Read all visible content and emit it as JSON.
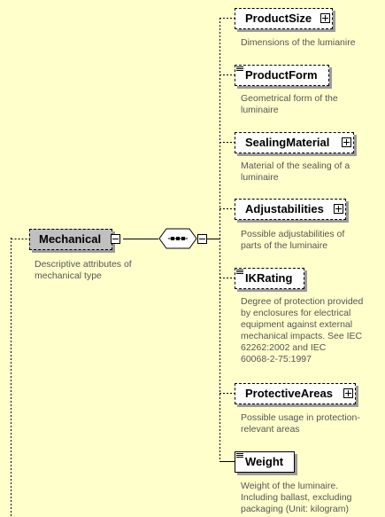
{
  "root": {
    "label": "Mechanical",
    "description_lines": [
      "Descriptive attributes of",
      "mechanical type"
    ]
  },
  "sequence": {
    "icon": "sequence-compositor-icon"
  },
  "children": [
    {
      "label": "ProductSize",
      "expandable": true,
      "documented": false,
      "description_lines": [
        "Dimensions of the lumianire"
      ]
    },
    {
      "label": "ProductForm",
      "expandable": false,
      "documented": true,
      "description_lines": [
        "Geometrical form of the",
        "luminaire"
      ]
    },
    {
      "label": "SealingMaterial",
      "expandable": true,
      "documented": false,
      "description_lines": [
        "Material of the sealing of a",
        "luminaire"
      ]
    },
    {
      "label": "Adjustabilities",
      "expandable": true,
      "documented": false,
      "description_lines": [
        "Possible adjustabilities of",
        "parts of the luminaire"
      ]
    },
    {
      "label": "IKRating",
      "expandable": false,
      "documented": true,
      "description_lines": [
        "Degree of protection provided",
        "by enclosures for electrical",
        "equipment against external",
        "mechanical impacts. See IEC",
        "62262:2002 and IEC",
        "60068-2-75:1997"
      ]
    },
    {
      "label": "ProtectiveAreas",
      "expandable": true,
      "documented": false,
      "description_lines": [
        "Possible usage in protection-",
        "relevant areas"
      ]
    },
    {
      "label": "Weight",
      "expandable": false,
      "documented": true,
      "description_lines": [
        "Weight of the luminaire.",
        "Including ballast, excluding",
        "packaging (Unit: kilogram)"
      ]
    }
  ],
  "colors": {
    "background": "#ffffcc",
    "root_fill": "#c0c0c0",
    "box_fill": "#ffffff",
    "shadow": "#9b9b9b",
    "description_text": "#555555"
  }
}
